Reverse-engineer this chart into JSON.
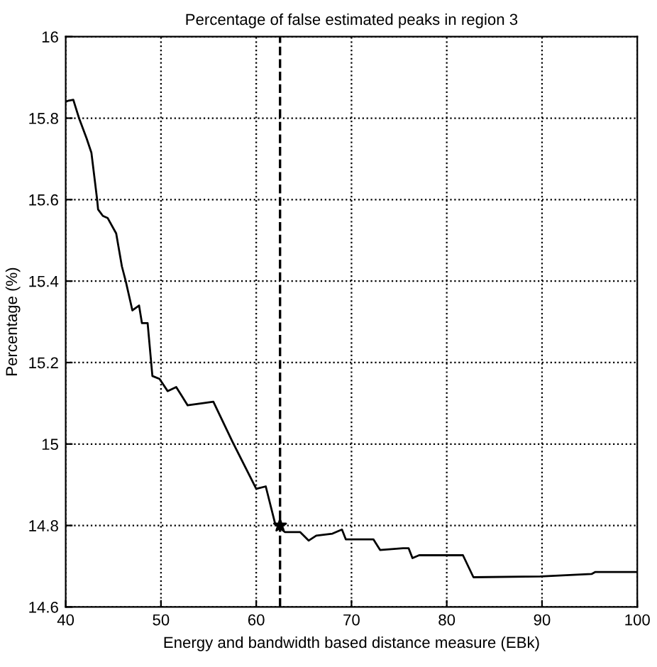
{
  "chart_data": {
    "type": "line",
    "title": "Percentage of false estimated peaks in region 3",
    "xlabel": "Energy and bandwidth based distance measure (EBk)",
    "ylabel": "Percentage (%)",
    "xlim": [
      40,
      100
    ],
    "ylim": [
      14.6,
      16
    ],
    "xticks": [
      40,
      50,
      60,
      70,
      80,
      90,
      100
    ],
    "yticks": [
      14.6,
      14.8,
      15,
      15.2,
      15.4,
      15.6,
      15.8,
      16
    ],
    "grid": true,
    "series": [
      {
        "color": "#000000",
        "x": [
          40,
          40.3,
          40.8,
          41.0,
          41.4,
          42.2,
          42.7,
          43.3,
          43.4,
          43.9,
          44.4,
          45.3,
          45.9,
          46.3,
          47.0,
          47.7,
          48.0,
          48.6,
          49.1,
          49.85,
          50.7,
          51.6,
          52.8,
          54.3,
          55.5,
          57.5,
          60.0,
          61.0,
          62.0,
          63.0,
          64.6,
          65.5,
          66.3,
          68.0,
          69.0,
          69.4,
          72.3,
          73.0,
          75.4,
          76.0,
          76.4,
          77.1,
          81.7,
          82.8,
          89.8,
          95.2,
          95.6,
          100
        ],
        "values": [
          15.84,
          15.843,
          15.845,
          15.83,
          15.8,
          15.75,
          15.715,
          15.6,
          15.576,
          15.56,
          15.555,
          15.517,
          15.436,
          15.4,
          15.328,
          15.34,
          15.297,
          15.297,
          15.167,
          15.16,
          15.13,
          15.14,
          15.095,
          15.1,
          15.104,
          15.006,
          14.89,
          14.896,
          14.803,
          14.784,
          14.784,
          14.763,
          14.775,
          14.78,
          14.79,
          14.766,
          14.766,
          14.74,
          14.744,
          14.744,
          14.72,
          14.727,
          14.727,
          14.673,
          14.675,
          14.681,
          14.686,
          14.686
        ]
      },
      {
        "type": "scatter",
        "marker": "star",
        "color": "#000000",
        "x": [
          62.5
        ],
        "values": [
          14.8
        ]
      }
    ],
    "ref_lines": [
      {
        "axis": "x",
        "value": 62.5,
        "color": "#000000",
        "line_style": "dashed"
      }
    ],
    "marker": "none",
    "line_style": "solid"
  }
}
